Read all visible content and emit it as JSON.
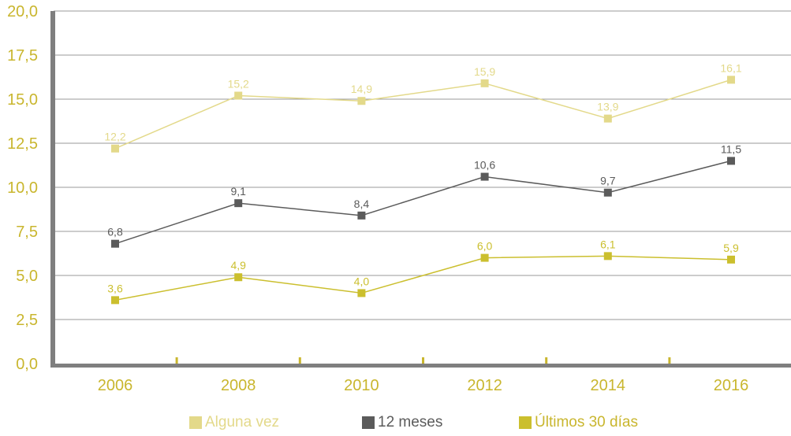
{
  "chart_data": {
    "type": "line",
    "title": "",
    "xlabel": "",
    "ylabel": "",
    "x": [
      "2006",
      "2008",
      "2010",
      "2012",
      "2014",
      "2016"
    ],
    "ylim": [
      0,
      20
    ],
    "yticks": [
      "0,0",
      "2,5",
      "5,0",
      "7,5",
      "10,0",
      "12,5",
      "15,0",
      "17,5",
      "20,0"
    ],
    "grid": true,
    "legend_position": "bottom",
    "series": [
      {
        "name": "Alguna vez",
        "color": "#e3d98a",
        "values": [
          12.2,
          15.2,
          14.9,
          15.9,
          13.9,
          16.1
        ],
        "labels": [
          "12,2",
          "15,2",
          "14,9",
          "15,9",
          "13,9",
          "16,1"
        ]
      },
      {
        "name": "12 meses",
        "color": "#5b5b5b",
        "values": [
          6.8,
          9.1,
          8.4,
          10.6,
          9.7,
          11.5
        ],
        "labels": [
          "6,8",
          "9,1",
          "8,4",
          "10,6",
          "9,7",
          "11,5"
        ]
      },
      {
        "name": "Últimos 30 días",
        "color": "#cbbf2e",
        "values": [
          3.6,
          4.9,
          4.0,
          6.0,
          6.1,
          5.9
        ],
        "labels": [
          "3,6",
          "4,9",
          "4,0",
          "6,0",
          "6,1",
          "5,9"
        ]
      }
    ]
  }
}
